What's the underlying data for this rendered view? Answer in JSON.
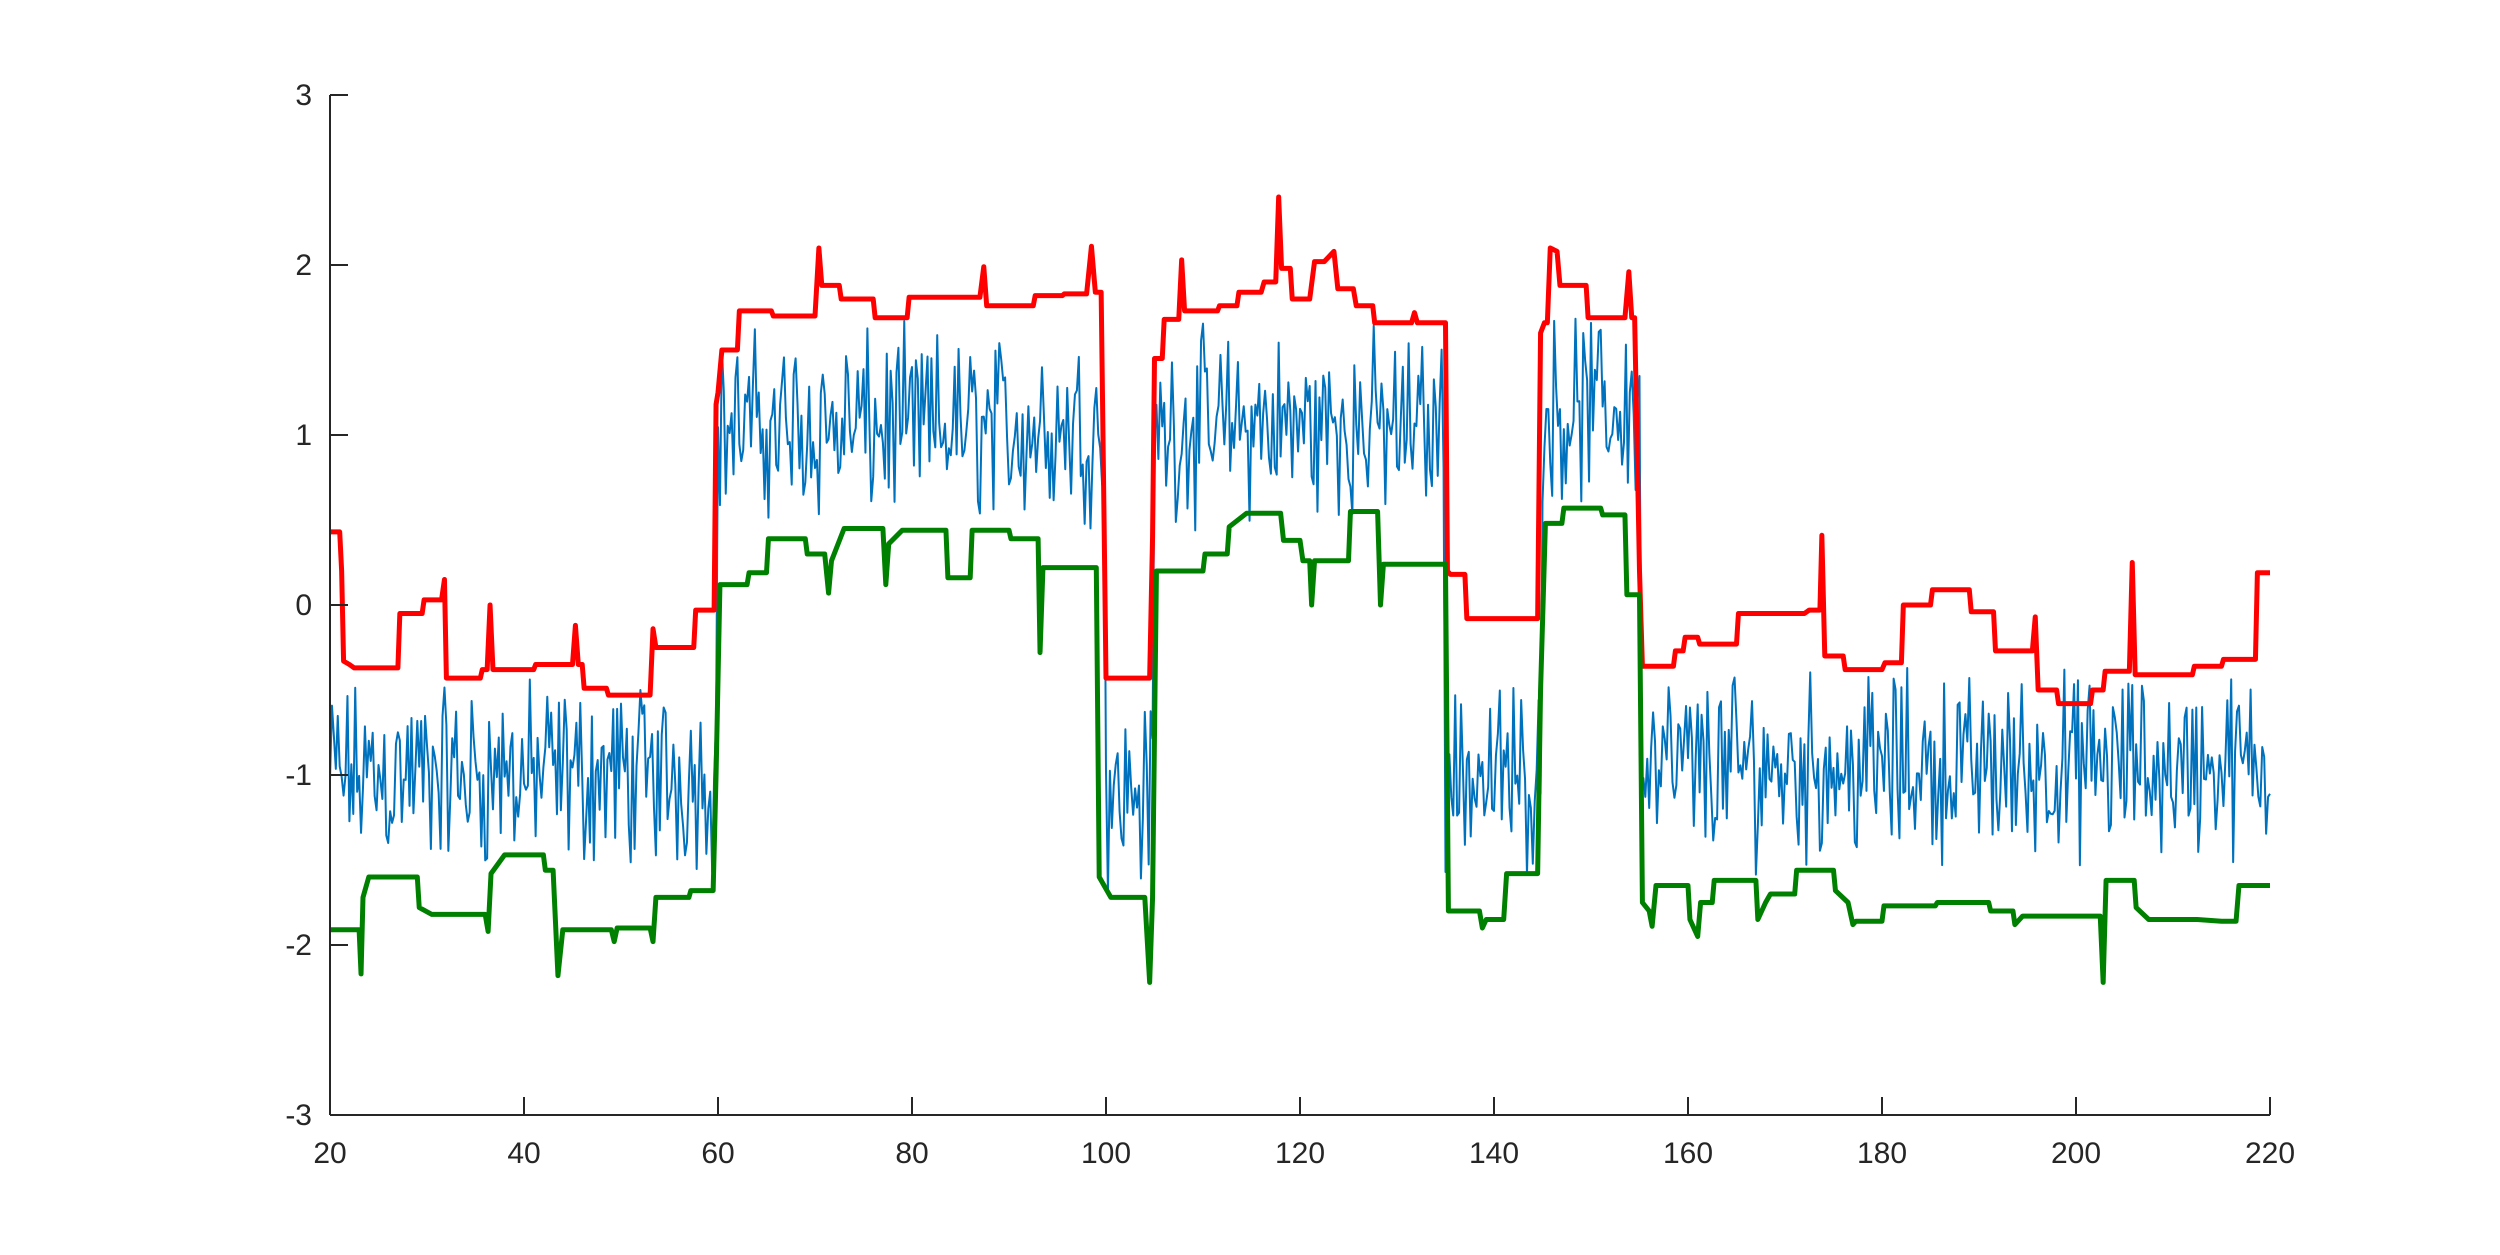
{
  "chart_data": {
    "type": "line",
    "title": "",
    "xlabel": "",
    "ylabel": "",
    "xlim": [
      20,
      220
    ],
    "ylim": [
      -3,
      3
    ],
    "grid": false,
    "legend": "none",
    "x_ticks": [
      20,
      40,
      60,
      80,
      100,
      120,
      140,
      160,
      180,
      200,
      220
    ],
    "y_ticks": [
      -3,
      -2,
      -1,
      0,
      1,
      2,
      3
    ],
    "x_tick_labels": [
      "20",
      "40",
      "60",
      "80",
      "100",
      "120",
      "140",
      "160",
      "180",
      "200",
      "220"
    ],
    "y_tick_labels": [
      "-3",
      "-2",
      "-1",
      "0",
      "1",
      "2",
      "3"
    ],
    "series": [
      {
        "role": "signal",
        "color": "#0072BD",
        "line_width": "thin",
        "description": "noisy signal sampled every 0.2 units, values approximated from regime means",
        "x_start": 20,
        "x_step": 0.2,
        "regimes": [
          {
            "from": 20,
            "to": 60,
            "mean": -1.0
          },
          {
            "from": 60,
            "to": 100,
            "mean": 1.05
          },
          {
            "from": 100,
            "to": 105,
            "mean": -1.1
          },
          {
            "from": 105,
            "to": 135,
            "mean": 1.05
          },
          {
            "from": 135,
            "to": 145,
            "mean": -1.0
          },
          {
            "from": 145,
            "to": 155,
            "mean": 1.15
          },
          {
            "from": 155,
            "to": 220,
            "mean": -0.95
          }
        ],
        "noise_amplitude": 0.65
      },
      {
        "role": "upper-envelope",
        "color": "#FF0000",
        "line_width": "thick",
        "points": [
          [
            20,
            0.43
          ],
          [
            21,
            0.43
          ],
          [
            21.2,
            0.2
          ],
          [
            21.4,
            -0.33
          ],
          [
            22,
            -0.35
          ],
          [
            22.5,
            -0.37
          ],
          [
            27,
            -0.37
          ],
          [
            27.2,
            -0.05
          ],
          [
            29.5,
            -0.05
          ],
          [
            29.7,
            0.03
          ],
          [
            31.5,
            0.03
          ],
          [
            31.8,
            0.15
          ],
          [
            32,
            -0.43
          ],
          [
            35.5,
            -0.43
          ],
          [
            35.7,
            -0.38
          ],
          [
            36.2,
            -0.38
          ],
          [
            36.5,
            0.0
          ],
          [
            36.8,
            -0.38
          ],
          [
            41,
            -0.38
          ],
          [
            41.2,
            -0.35
          ],
          [
            45,
            -0.35
          ],
          [
            45.3,
            -0.12
          ],
          [
            45.6,
            -0.35
          ],
          [
            46,
            -0.35
          ],
          [
            46.2,
            -0.49
          ],
          [
            48.5,
            -0.49
          ],
          [
            48.7,
            -0.53
          ],
          [
            53,
            -0.53
          ],
          [
            53.3,
            -0.14
          ],
          [
            53.6,
            -0.25
          ],
          [
            57.5,
            -0.25
          ],
          [
            57.7,
            -0.03
          ],
          [
            59.6,
            -0.03
          ],
          [
            59.8,
            1.18
          ],
          [
            60,
            1.25
          ],
          [
            60.4,
            1.5
          ],
          [
            62,
            1.5
          ],
          [
            62.2,
            1.73
          ],
          [
            65.5,
            1.73
          ],
          [
            65.7,
            1.7
          ],
          [
            70,
            1.7
          ],
          [
            70.4,
            2.1
          ],
          [
            70.7,
            1.88
          ],
          [
            72.5,
            1.88
          ],
          [
            72.7,
            1.8
          ],
          [
            76,
            1.8
          ],
          [
            76.2,
            1.69
          ],
          [
            79.5,
            1.69
          ],
          [
            79.7,
            1.81
          ],
          [
            87,
            1.81
          ],
          [
            87.4,
            1.99
          ],
          [
            87.7,
            1.76
          ],
          [
            92.5,
            1.76
          ],
          [
            92.7,
            1.82
          ],
          [
            95.5,
            1.82
          ],
          [
            95.7,
            1.83
          ],
          [
            98,
            1.83
          ],
          [
            98.5,
            2.11
          ],
          [
            98.9,
            1.84
          ],
          [
            99.5,
            1.84
          ],
          [
            99.8,
            0.5
          ],
          [
            100,
            -0.43
          ],
          [
            104.5,
            -0.43
          ],
          [
            104.8,
            0.4
          ],
          [
            105,
            1.45
          ],
          [
            105.8,
            1.45
          ],
          [
            106,
            1.68
          ],
          [
            107.5,
            1.68
          ],
          [
            107.8,
            2.03
          ],
          [
            108.1,
            1.73
          ],
          [
            109.5,
            1.73
          ],
          [
            109.7,
            1.73
          ],
          [
            111.5,
            1.73
          ],
          [
            111.7,
            1.76
          ],
          [
            113.5,
            1.76
          ],
          [
            113.7,
            1.84
          ],
          [
            116,
            1.84
          ],
          [
            116.3,
            1.9
          ],
          [
            117.5,
            1.9
          ],
          [
            117.8,
            2.4
          ],
          [
            118.1,
            1.98
          ],
          [
            119,
            1.98
          ],
          [
            119.2,
            1.8
          ],
          [
            121,
            1.8
          ],
          [
            121.5,
            2.02
          ],
          [
            122.5,
            2.02
          ],
          [
            123.5,
            2.08
          ],
          [
            123.9,
            1.86
          ],
          [
            125.5,
            1.86
          ],
          [
            125.8,
            1.76
          ],
          [
            127.5,
            1.76
          ],
          [
            127.7,
            1.66
          ],
          [
            131.5,
            1.66
          ],
          [
            131.8,
            1.72
          ],
          [
            132.1,
            1.66
          ],
          [
            133,
            1.66
          ],
          [
            135,
            1.66
          ],
          [
            135.2,
            0.2
          ],
          [
            135.5,
            0.18
          ],
          [
            137,
            0.18
          ],
          [
            137.2,
            -0.08
          ],
          [
            142.5,
            -0.08
          ],
          [
            144.5,
            -0.08
          ],
          [
            144.8,
            1.6
          ],
          [
            145.2,
            1.66
          ],
          [
            145.5,
            1.66
          ],
          [
            145.8,
            2.1
          ],
          [
            146.5,
            2.08
          ],
          [
            146.8,
            1.88
          ],
          [
            149.5,
            1.88
          ],
          [
            149.7,
            1.69
          ],
          [
            153.5,
            1.69
          ],
          [
            153.9,
            1.96
          ],
          [
            154.2,
            1.69
          ],
          [
            154.5,
            1.69
          ],
          [
            155,
            0.2
          ],
          [
            155.3,
            -0.36
          ],
          [
            158.5,
            -0.36
          ],
          [
            158.7,
            -0.27
          ],
          [
            159.5,
            -0.27
          ],
          [
            159.7,
            -0.19
          ],
          [
            161,
            -0.19
          ],
          [
            161.2,
            -0.23
          ],
          [
            165,
            -0.23
          ],
          [
            165.2,
            -0.05
          ],
          [
            172,
            -0.05
          ],
          [
            172.5,
            -0.03
          ],
          [
            173.6,
            -0.03
          ],
          [
            173.8,
            0.41
          ],
          [
            174.1,
            -0.3
          ],
          [
            176,
            -0.3
          ],
          [
            176.2,
            -0.38
          ],
          [
            180,
            -0.38
          ],
          [
            180.3,
            -0.34
          ],
          [
            182,
            -0.34
          ],
          [
            182.2,
            0.0
          ],
          [
            185,
            0.0
          ],
          [
            185.2,
            0.09
          ],
          [
            189,
            0.09
          ],
          [
            189.2,
            -0.04
          ],
          [
            191.5,
            -0.04
          ],
          [
            191.7,
            -0.27
          ],
          [
            195.5,
            -0.27
          ],
          [
            195.8,
            -0.07
          ],
          [
            196.1,
            -0.5
          ],
          [
            198,
            -0.5
          ],
          [
            198.2,
            -0.58
          ],
          [
            201.5,
            -0.58
          ],
          [
            201.7,
            -0.5
          ],
          [
            202.8,
            -0.5
          ],
          [
            203,
            -0.39
          ],
          [
            205.5,
            -0.39
          ],
          [
            205.8,
            0.25
          ],
          [
            206.1,
            -0.41
          ],
          [
            212,
            -0.41
          ],
          [
            212.2,
            -0.36
          ],
          [
            215,
            -0.36
          ],
          [
            215.2,
            -0.32
          ],
          [
            218.5,
            -0.32
          ],
          [
            218.7,
            0.19
          ],
          [
            220,
            0.19
          ]
        ]
      },
      {
        "role": "lower-envelope",
        "color": "#008000",
        "line_width": "thick",
        "points": [
          [
            20,
            -1.91
          ],
          [
            23,
            -1.91
          ],
          [
            23.2,
            -2.17
          ],
          [
            23.4,
            -1.72
          ],
          [
            24,
            -1.6
          ],
          [
            29,
            -1.6
          ],
          [
            29.2,
            -1.78
          ],
          [
            30.5,
            -1.82
          ],
          [
            36,
            -1.82
          ],
          [
            36.3,
            -1.92
          ],
          [
            36.6,
            -1.58
          ],
          [
            38,
            -1.47
          ],
          [
            42,
            -1.47
          ],
          [
            42.2,
            -1.56
          ],
          [
            43,
            -1.56
          ],
          [
            43.5,
            -2.18
          ],
          [
            44,
            -1.91
          ],
          [
            49,
            -1.91
          ],
          [
            49.3,
            -1.98
          ],
          [
            49.6,
            -1.9
          ],
          [
            53,
            -1.9
          ],
          [
            53.3,
            -1.98
          ],
          [
            53.6,
            -1.72
          ],
          [
            57,
            -1.72
          ],
          [
            57.2,
            -1.68
          ],
          [
            59.5,
            -1.68
          ],
          [
            59.8,
            -1.0
          ],
          [
            60.2,
            0.12
          ],
          [
            63,
            0.12
          ],
          [
            63.2,
            0.19
          ],
          [
            65,
            0.19
          ],
          [
            65.2,
            0.39
          ],
          [
            69,
            0.39
          ],
          [
            69.2,
            0.3
          ],
          [
            71,
            0.3
          ],
          [
            71.4,
            0.07
          ],
          [
            71.7,
            0.26
          ],
          [
            73,
            0.45
          ],
          [
            77,
            0.45
          ],
          [
            77.3,
            0.12
          ],
          [
            77.6,
            0.36
          ],
          [
            79,
            0.44
          ],
          [
            83.5,
            0.44
          ],
          [
            83.7,
            0.16
          ],
          [
            86,
            0.16
          ],
          [
            86.2,
            0.44
          ],
          [
            90,
            0.44
          ],
          [
            90.2,
            0.39
          ],
          [
            93,
            0.39
          ],
          [
            93.2,
            -0.28
          ],
          [
            93.5,
            0.22
          ],
          [
            99,
            0.22
          ],
          [
            99.3,
            -1.6
          ],
          [
            100.5,
            -1.72
          ],
          [
            104,
            -1.72
          ],
          [
            104.5,
            -2.22
          ],
          [
            104.8,
            -1.72
          ],
          [
            105.2,
            0.2
          ],
          [
            110,
            0.2
          ],
          [
            110.2,
            0.3
          ],
          [
            112.5,
            0.3
          ],
          [
            112.7,
            0.46
          ],
          [
            114.5,
            0.54
          ],
          [
            118,
            0.54
          ],
          [
            118.3,
            0.38
          ],
          [
            120,
            0.38
          ],
          [
            120.3,
            0.26
          ],
          [
            121,
            0.26
          ],
          [
            121.2,
            0.0
          ],
          [
            121.5,
            0.26
          ],
          [
            125,
            0.26
          ],
          [
            125.2,
            0.55
          ],
          [
            128,
            0.55
          ],
          [
            128.3,
            0.0
          ],
          [
            128.6,
            0.24
          ],
          [
            135,
            0.24
          ],
          [
            135.3,
            -1.8
          ],
          [
            138.5,
            -1.8
          ],
          [
            138.8,
            -1.9
          ],
          [
            139.2,
            -1.85
          ],
          [
            141,
            -1.85
          ],
          [
            141.3,
            -1.58
          ],
          [
            144.5,
            -1.58
          ],
          [
            144.8,
            -0.5
          ],
          [
            145.3,
            0.48
          ],
          [
            147,
            0.48
          ],
          [
            147.2,
            0.57
          ],
          [
            151,
            0.57
          ],
          [
            151.2,
            0.53
          ],
          [
            153.5,
            0.53
          ],
          [
            153.7,
            0.06
          ],
          [
            155,
            0.06
          ],
          [
            155.3,
            -1.75
          ],
          [
            156,
            -1.8
          ],
          [
            156.3,
            -1.89
          ],
          [
            156.7,
            -1.65
          ],
          [
            160,
            -1.65
          ],
          [
            160.2,
            -1.85
          ],
          [
            161,
            -1.95
          ],
          [
            161.3,
            -1.75
          ],
          [
            162.5,
            -1.75
          ],
          [
            162.7,
            -1.62
          ],
          [
            167,
            -1.62
          ],
          [
            167.2,
            -1.85
          ],
          [
            168,
            -1.75
          ],
          [
            168.5,
            -1.7
          ],
          [
            171,
            -1.7
          ],
          [
            171.2,
            -1.56
          ],
          [
            175,
            -1.56
          ],
          [
            175.2,
            -1.68
          ],
          [
            176.5,
            -1.75
          ],
          [
            177,
            -1.88
          ],
          [
            177.3,
            -1.86
          ],
          [
            180,
            -1.86
          ],
          [
            180.2,
            -1.77
          ],
          [
            185.5,
            -1.77
          ],
          [
            185.7,
            -1.75
          ],
          [
            191,
            -1.75
          ],
          [
            191.2,
            -1.8
          ],
          [
            193.5,
            -1.8
          ],
          [
            193.7,
            -1.88
          ],
          [
            194.5,
            -1.83
          ],
          [
            202.5,
            -1.83
          ],
          [
            202.8,
            -2.22
          ],
          [
            203.1,
            -1.62
          ],
          [
            206,
            -1.62
          ],
          [
            206.2,
            -1.78
          ],
          [
            207.5,
            -1.85
          ],
          [
            212.5,
            -1.85
          ],
          [
            215,
            -1.86
          ],
          [
            216.5,
            -1.86
          ],
          [
            216.8,
            -1.65
          ],
          [
            220,
            -1.65
          ]
        ]
      }
    ]
  }
}
